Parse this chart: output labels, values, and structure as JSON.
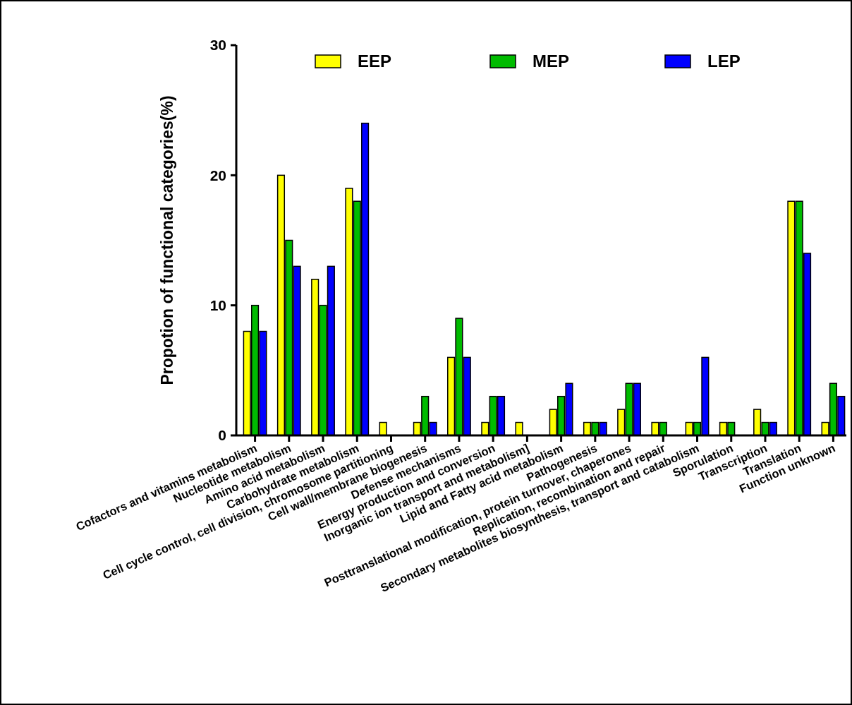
{
  "chart_data": {
    "type": "bar",
    "ylabel": "Propotion of functional categories(%)",
    "categories": [
      "Cofactors and vitamins metabolism",
      "Nucleotide metabolism",
      "Amino acid metabolism",
      "Carbohydrate metabolism",
      "Cell cycle control, cell division, chromosome partitioning",
      "Cell wall/membrane biogenesis",
      "Defense mechanisms",
      "Energy production and conversion",
      "Inorganic ion transport and metabolism]",
      "Lipid and Fatty acid metabolism",
      "Pathogenesis",
      "Posttranslational modification, protein turnover, chaperones",
      "Replication, recombination and repair",
      "Secondary metabolites biosynthesis, transport and catabolism",
      "Sporulation",
      "Transcription",
      "Translation",
      "Function unknown"
    ],
    "series": [
      {
        "name": "EEP",
        "color": "#ffff00",
        "values": [
          8,
          20,
          12,
          19,
          1,
          1,
          6,
          1,
          1,
          2,
          1,
          2,
          1,
          1,
          1,
          2,
          18,
          1
        ]
      },
      {
        "name": "MEP",
        "color": "#00bb00",
        "values": [
          10,
          15,
          10,
          18,
          null,
          3,
          9,
          3,
          null,
          3,
          1,
          4,
          1,
          1,
          1,
          1,
          18,
          4
        ]
      },
      {
        "name": "LEP",
        "color": "#0000ff",
        "values": [
          8,
          13,
          13,
          24,
          null,
          1,
          6,
          3,
          null,
          4,
          1,
          4,
          null,
          6,
          null,
          1,
          14,
          3
        ]
      }
    ],
    "ylim": [
      0,
      30
    ],
    "yticks": [
      0,
      10,
      20,
      30
    ],
    "grid": false,
    "legend": "top"
  }
}
